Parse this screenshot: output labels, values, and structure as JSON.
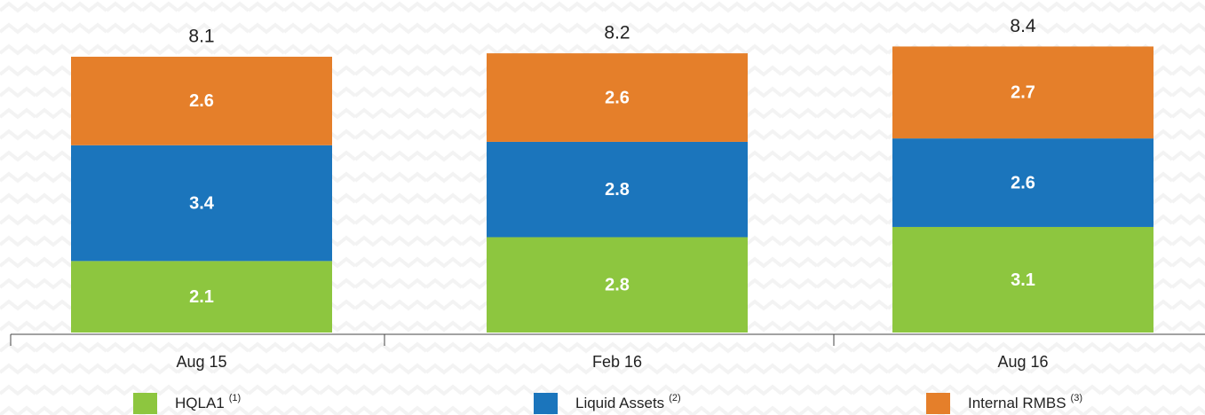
{
  "chart_data": {
    "type": "stacked_bar",
    "categories": [
      "Aug 15",
      "Feb 16",
      "Aug 16"
    ],
    "series": [
      {
        "name": "HQLA1",
        "footnote": "(1)",
        "color": "#8dc63f",
        "values": [
          2.1,
          2.8,
          3.1
        ]
      },
      {
        "name": "Liquid Assets",
        "footnote": "(2)",
        "color": "#1b75bc",
        "values": [
          3.4,
          2.8,
          2.6
        ]
      },
      {
        "name": "Internal RMBS",
        "footnote": "(3)",
        "color": "#e57f2a",
        "values": [
          2.6,
          2.6,
          2.7
        ]
      }
    ],
    "totals": [
      8.1,
      8.2,
      8.4
    ]
  }
}
